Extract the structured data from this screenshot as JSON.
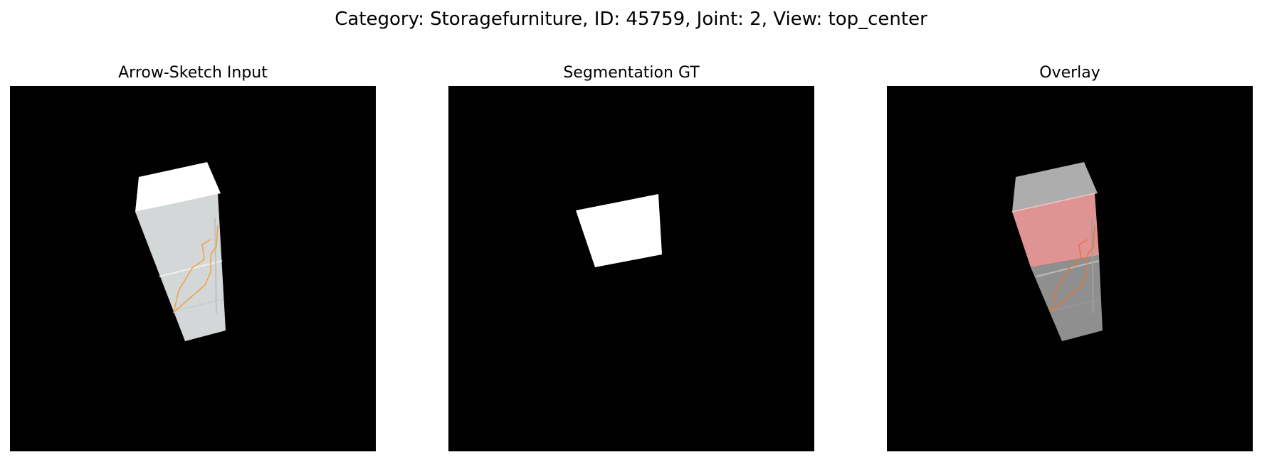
{
  "figure": {
    "title": "Category: Storagefurniture, ID: 45759, Joint: 2, View: top_center"
  },
  "panels": [
    {
      "title": "Arrow-Sketch Input",
      "content": "render of cabinet with orange arrow sketch"
    },
    {
      "title": "Segmentation GT",
      "content": "white segmentation mask on black background"
    },
    {
      "title": "Overlay",
      "content": "render with red mask overlay"
    }
  ],
  "colors": {
    "background": "#000000",
    "cabinet_body": "#d4d7d7",
    "cabinet_top": "#ffffff",
    "arrow_sketch": "#f0a040",
    "mask": "#ffffff",
    "overlay_highlight": "#e09393",
    "overlay_body": "#8f8f8f"
  }
}
